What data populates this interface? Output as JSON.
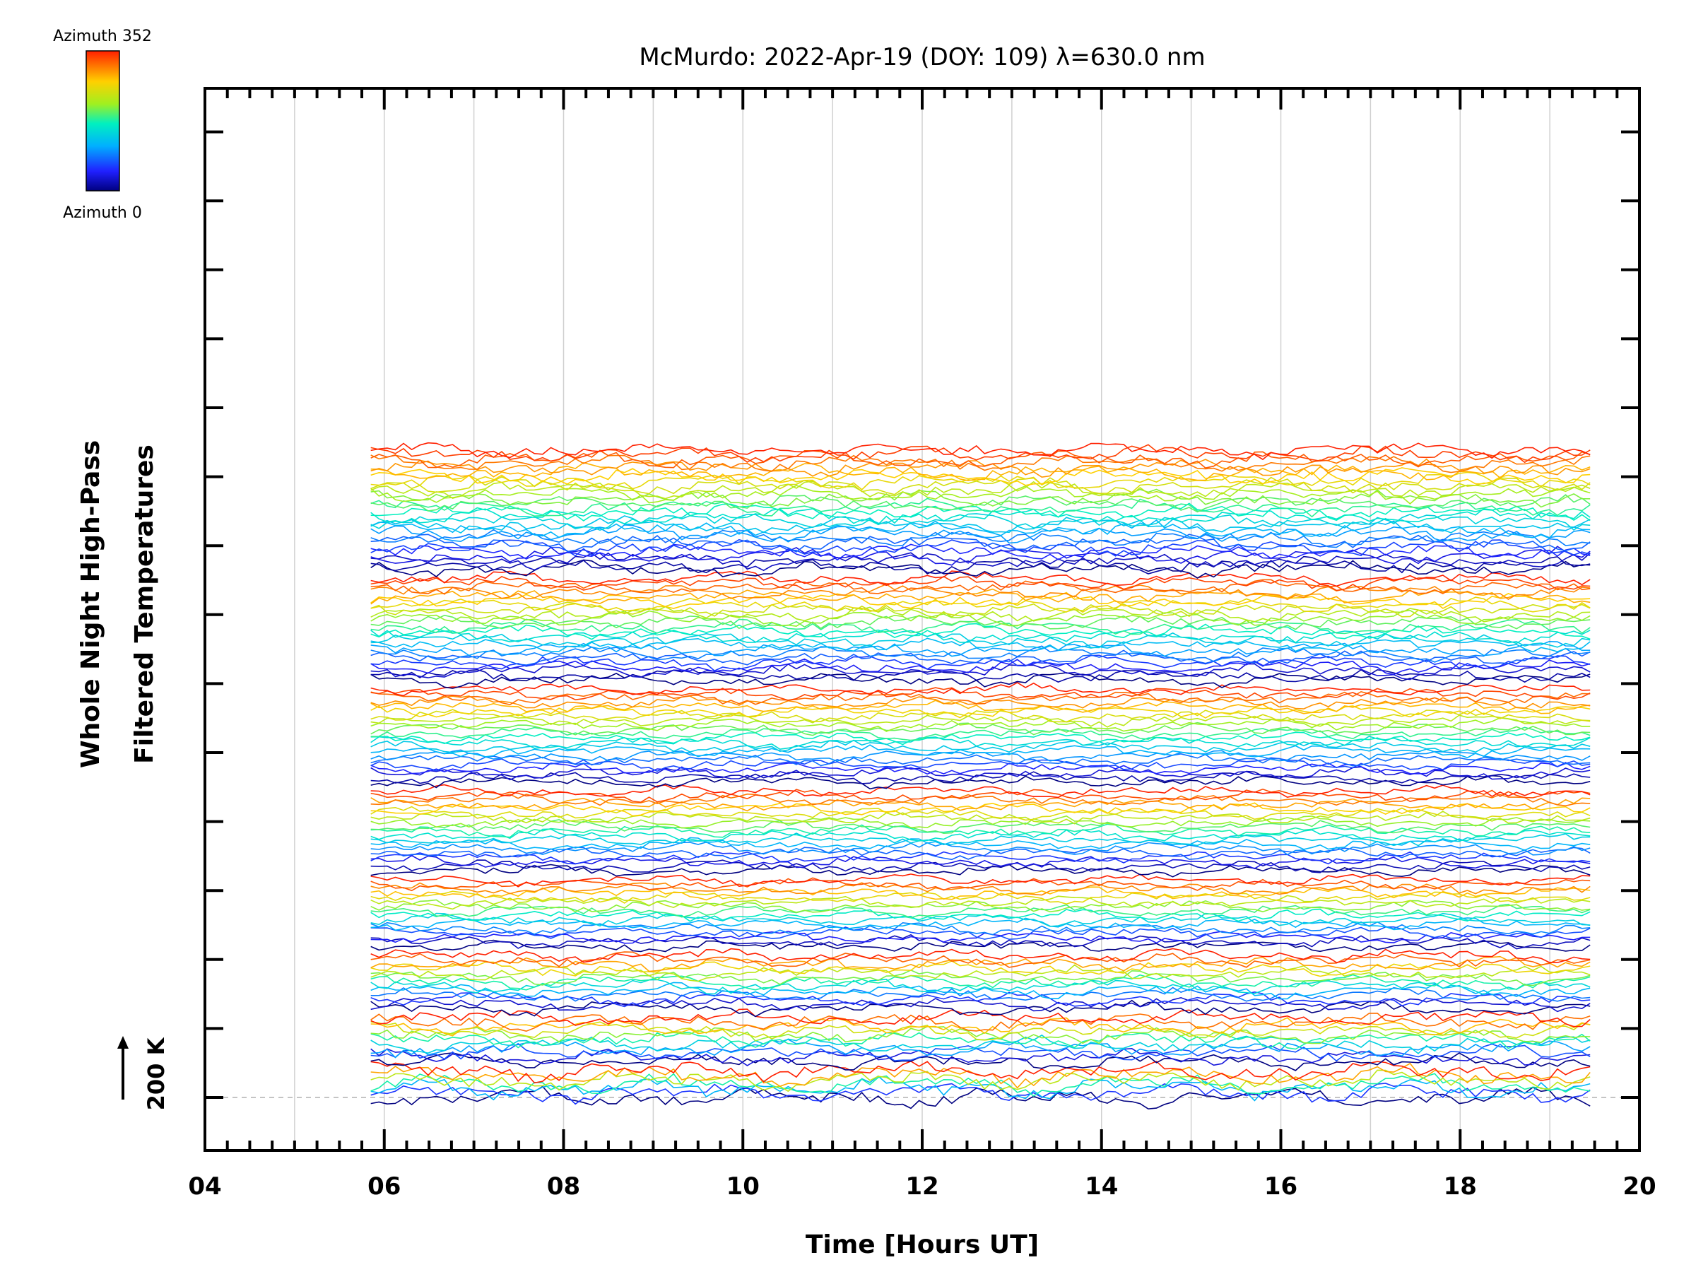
{
  "chart_data": {
    "type": "line",
    "title": "McMurdo: 2022-Apr-19 (DOY: 109) λ=630.0 nm",
    "xlabel": "Time [Hours UT]",
    "ylabel_line1": "Whole Night High-Pass",
    "ylabel_line2": "Filtered Temperatures",
    "xlim": [
      4,
      20
    ],
    "x_ticks": [
      "04",
      "06",
      "08",
      "10",
      "12",
      "14",
      "16",
      "18",
      "20"
    ],
    "x_tick_values": [
      4,
      6,
      8,
      10,
      12,
      14,
      16,
      18,
      20
    ],
    "data_time_range": [
      5.85,
      19.45
    ],
    "vertical_gridlines_hours": [
      5,
      6,
      7,
      8,
      9,
      10,
      11,
      12,
      13,
      14,
      15,
      16,
      17,
      18,
      19
    ],
    "reference_label": "200 K",
    "reference_line": true,
    "grid": true,
    "legend": "colorbar, top-left",
    "colorbar": {
      "label_top": "Azimuth 352",
      "label_bottom": "Azimuth 0",
      "azimuth_min": 0,
      "azimuth_max": 352,
      "colormap": "rainbow (blue to red)"
    },
    "series_notes": "Stacked high-pass filtered temperature traces, one per azimuth/zenith sample, colored by azimuth 0 (dark blue) to 352 (red); individual values not labeled.",
    "groups": [
      {
        "traces": 7,
        "amplitude": 9
      },
      {
        "traces": 11,
        "amplitude": 7
      },
      {
        "traces": 13,
        "amplitude": 6
      },
      {
        "traces": 16,
        "amplitude": 5
      },
      {
        "traces": 19,
        "amplitude": 5
      },
      {
        "traces": 22,
        "amplitude": 5
      },
      {
        "traces": 24,
        "amplitude": 6
      },
      {
        "traces": 28,
        "amplitude": 7
      }
    ]
  },
  "colors": {
    "frame": "#000000",
    "gridline": "#d0d0d0",
    "refline": "#b0b0b0"
  }
}
